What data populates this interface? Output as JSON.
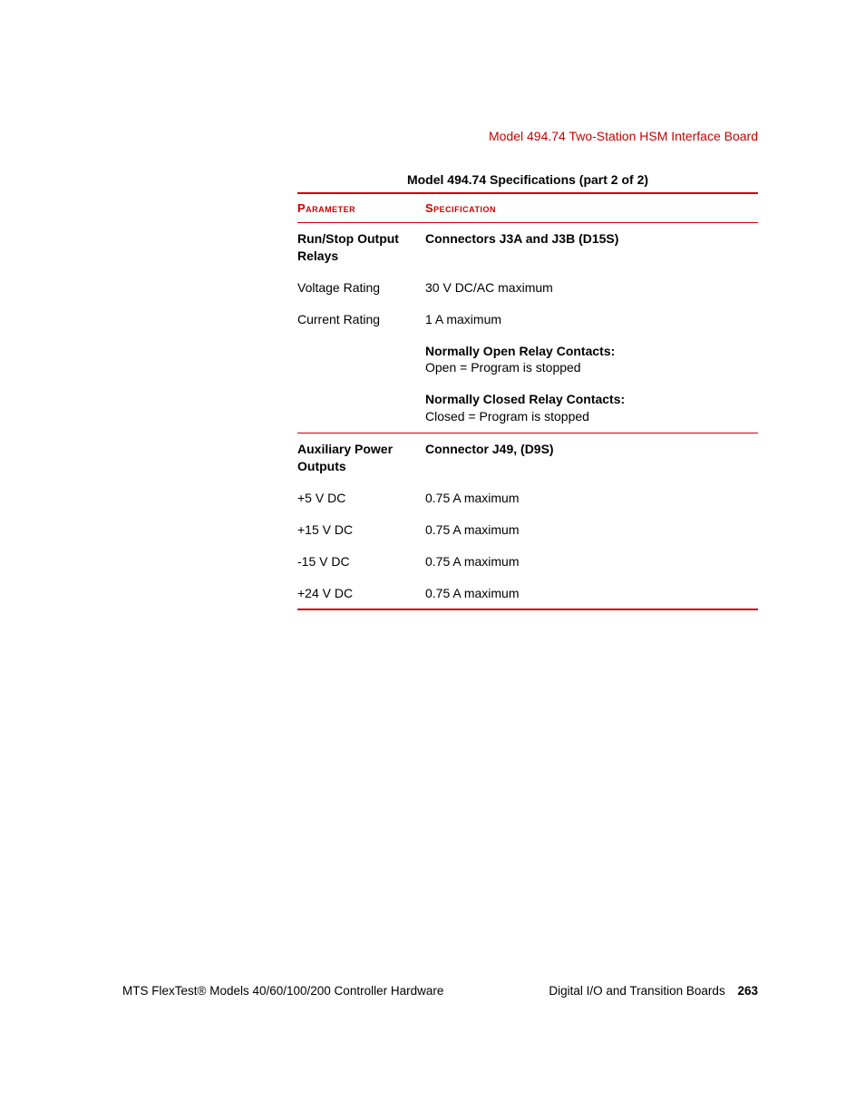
{
  "colors": {
    "accent": "#cc0000",
    "text": "#000000",
    "background": "#ffffff"
  },
  "header": {
    "title": "Model 494.74 Two-Station HSM Interface Board"
  },
  "table": {
    "caption": "Model 494.74 Specifications (part 2 of 2)",
    "columns": {
      "param": "Parameter",
      "spec": "Specification"
    },
    "section1": {
      "header_param": "Run/Stop Output Relays",
      "header_spec": "Connectors J3A and J3B (D15S)",
      "rows": [
        {
          "param": "Voltage Rating",
          "spec": "30 V DC/AC maximum"
        },
        {
          "param": "Current Rating",
          "spec": "1 A maximum"
        }
      ],
      "note1_bold": "Normally Open Relay Contacts:",
      "note1_text": "Open = Program is stopped",
      "note2_bold": "Normally Closed Relay Contacts:",
      "note2_text": "Closed = Program is stopped"
    },
    "section2": {
      "header_param": "Auxiliary Power Outputs",
      "header_spec": "Connector J49, (D9S)",
      "rows": [
        {
          "param": "+5 V DC",
          "spec": "0.75 A maximum"
        },
        {
          "param": "+15 V DC",
          "spec": "0.75 A maximum"
        },
        {
          "param": "-15 V DC",
          "spec": "0.75 A maximum"
        },
        {
          "param": "+24 V DC",
          "spec": "0.75 A maximum"
        }
      ]
    }
  },
  "footer": {
    "left": "MTS FlexTest® Models 40/60/100/200 Controller Hardware",
    "right_text": "Digital I/O and Transition Boards",
    "page": "263"
  }
}
